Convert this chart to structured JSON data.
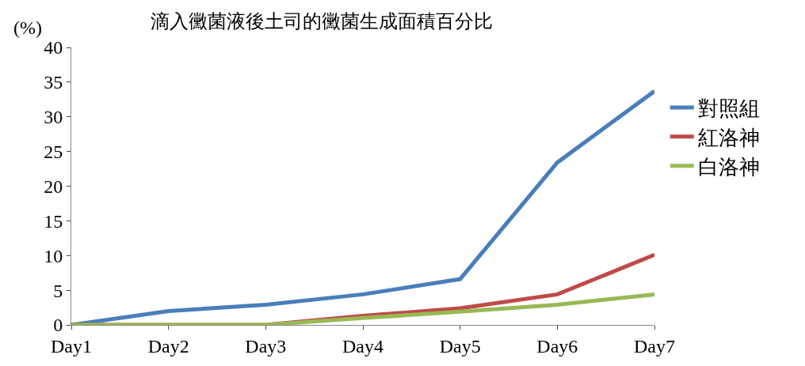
{
  "chart_data": {
    "type": "line",
    "title": "滴入黴菌液後土司的黴菌生成面積百分比",
    "ylabel": "(%)",
    "categories": [
      "Day1",
      "Day2",
      "Day3",
      "Day4",
      "Day5",
      "Day6",
      "Day7"
    ],
    "series": [
      {
        "name": "對照組",
        "color": "#4a7ebb",
        "values": [
          0,
          2.0,
          2.9,
          4.4,
          6.6,
          23.4,
          33.7
        ]
      },
      {
        "name": "紅洛神",
        "color": "#be4b48",
        "values": [
          0,
          0,
          0,
          1.3,
          2.4,
          4.4,
          10.1
        ]
      },
      {
        "name": "白洛神",
        "color": "#98b954",
        "values": [
          0,
          0,
          0,
          1.0,
          1.9,
          2.9,
          4.4
        ]
      }
    ],
    "ylim": [
      0,
      40
    ],
    "yticks": [
      0,
      5,
      10,
      15,
      20,
      25,
      30,
      35,
      40
    ],
    "legend": "right"
  }
}
